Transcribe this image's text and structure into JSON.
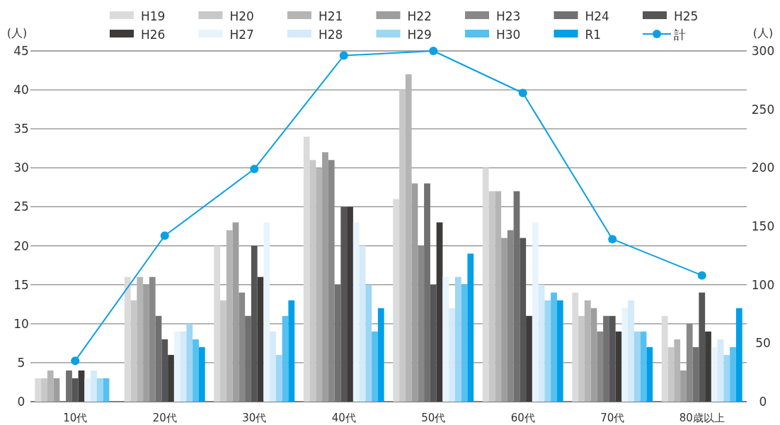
{
  "chart_data": {
    "type": "bar",
    "ylabel": "(人)",
    "y2label": "(人)",
    "categories": [
      "10代",
      "20代",
      "30代",
      "40代",
      "50代",
      "60代",
      "70代",
      "80歳以上"
    ],
    "series": [
      {
        "name": "H19",
        "color": "#dadbda",
        "values": [
          3,
          16,
          20,
          34,
          26,
          30,
          14,
          11
        ]
      },
      {
        "name": "H20",
        "color": "#c7c8c7",
        "values": [
          3,
          13,
          13,
          31,
          40,
          27,
          11,
          7
        ]
      },
      {
        "name": "H21",
        "color": "#b4b5b4",
        "values": [
          4,
          16,
          22,
          30,
          42,
          27,
          13,
          8
        ]
      },
      {
        "name": "H22",
        "color": "#9d9e9d",
        "values": [
          3,
          15,
          23,
          32,
          28,
          21,
          12,
          4
        ]
      },
      {
        "name": "H23",
        "color": "#888888",
        "values": [
          0,
          16,
          14,
          31,
          20,
          22,
          9,
          10
        ]
      },
      {
        "name": "H24",
        "color": "#707070",
        "values": [
          4,
          11,
          11,
          15,
          28,
          27,
          11,
          7
        ]
      },
      {
        "name": "H25",
        "color": "#565555",
        "values": [
          3,
          8,
          20,
          25,
          15,
          21,
          11,
          14
        ]
      },
      {
        "name": "H26",
        "color": "#3d3a3a",
        "values": [
          4,
          6,
          16,
          25,
          23,
          11,
          9,
          9
        ]
      },
      {
        "name": "H27",
        "color": "#e8f4fc",
        "values": [
          3,
          9,
          23,
          23,
          16,
          23,
          12,
          7
        ]
      },
      {
        "name": "H28",
        "color": "#d3ebfa",
        "values": [
          4,
          9,
          9,
          20,
          12,
          15,
          13,
          8
        ]
      },
      {
        "name": "H29",
        "color": "#9ed6f5",
        "values": [
          3,
          10,
          6,
          15,
          16,
          13,
          9,
          6
        ]
      },
      {
        "name": "H30",
        "color": "#56c0f0",
        "values": [
          3,
          8,
          11,
          9,
          15,
          14,
          9,
          7
        ]
      },
      {
        "name": "R1",
        "color": "#009fe8",
        "values": [
          0,
          7,
          13,
          12,
          19,
          13,
          7,
          12
        ]
      },
      {
        "name": "計",
        "type": "line",
        "axis": "y2",
        "marker": "circle",
        "color": "#0aa0e4",
        "values": [
          35,
          142,
          199,
          296,
          300,
          264,
          139,
          108
        ]
      }
    ],
    "ylim": [
      0,
      45
    ],
    "yticks": [
      0,
      5,
      10,
      15,
      20,
      25,
      30,
      35,
      40,
      45
    ],
    "y2lim": [
      0,
      300
    ],
    "y2ticks": [
      0,
      50,
      100,
      150,
      200,
      250,
      300
    ],
    "grid": "y",
    "legend": "top"
  }
}
